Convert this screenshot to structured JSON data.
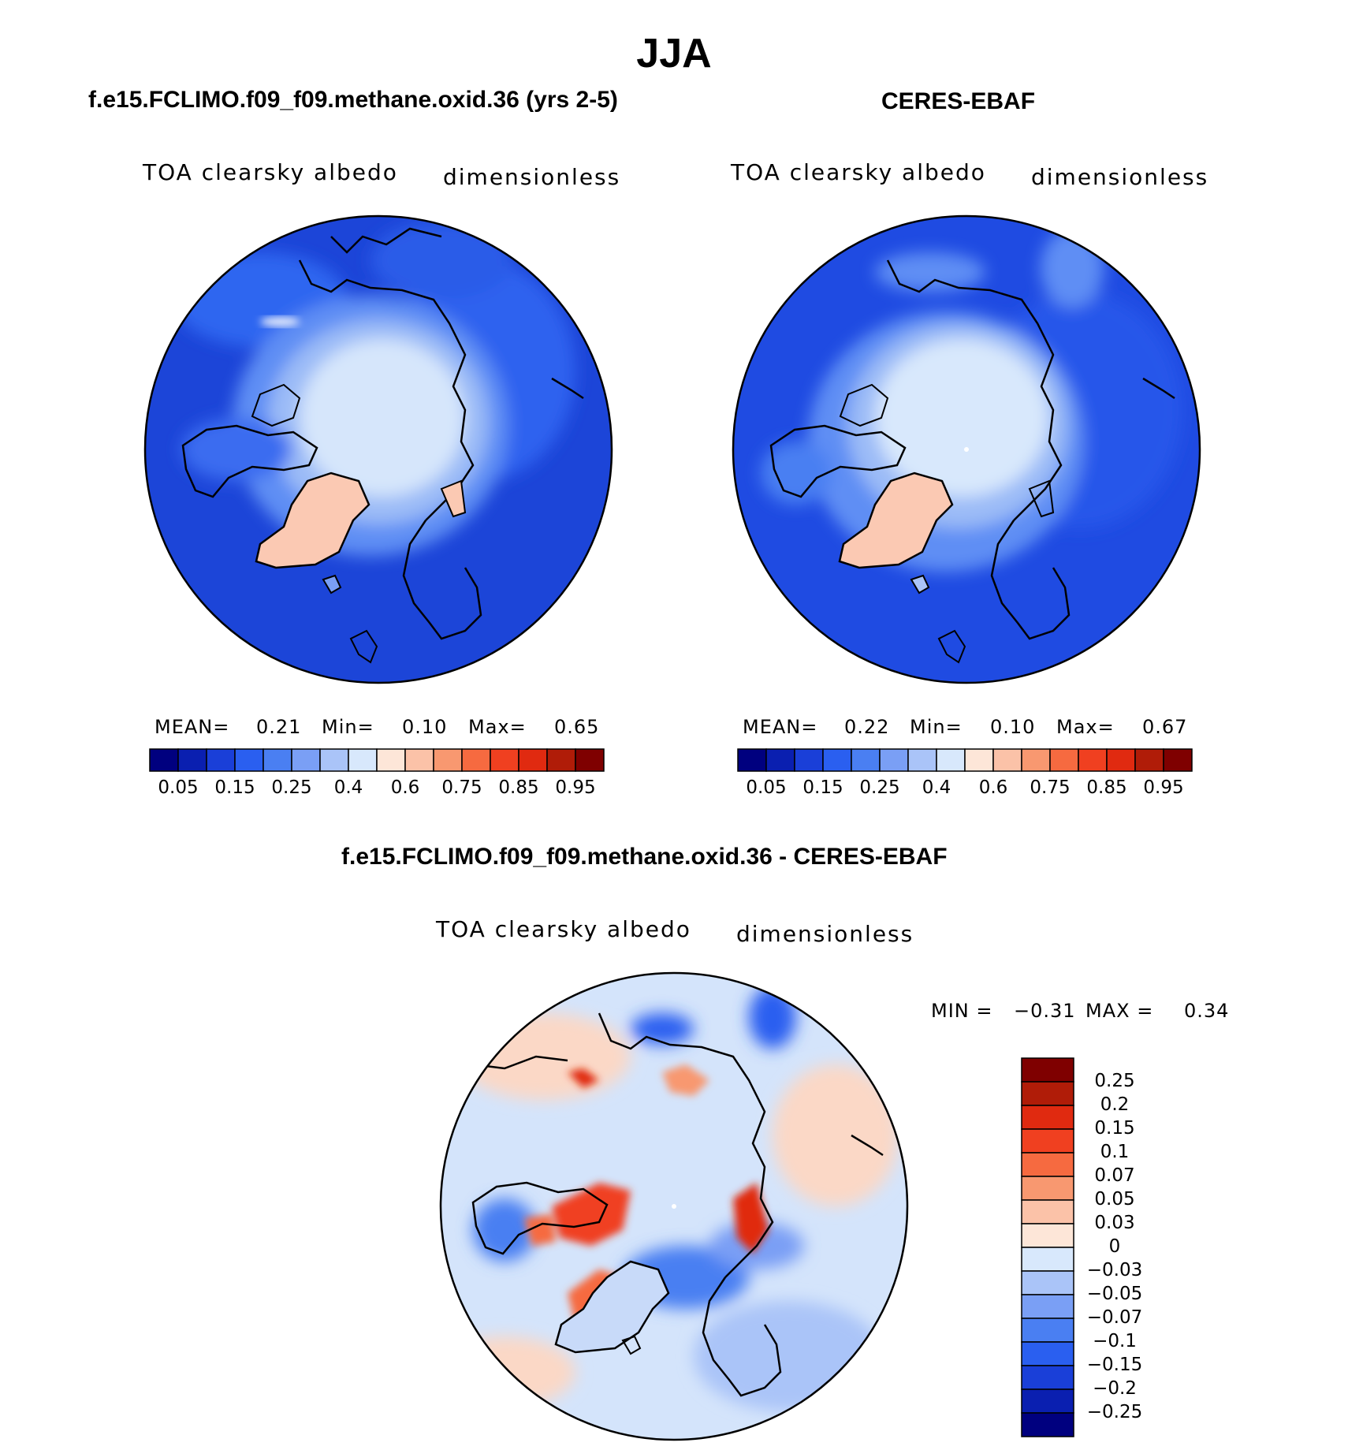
{
  "figure": {
    "season": "JJA",
    "top_left_title": "f.e15.FCLIMO.f09_f09.methane.oxid.36 (yrs 2-5)",
    "top_right_title": "CERES-EBAF",
    "difference_title": "f.e15.FCLIMO.f09_f09.methane.oxid.36 - CERES-EBAF"
  },
  "panels": {
    "model": {
      "variable": "TOA clearsky albedo",
      "units": "dimensionless",
      "mean_label": "MEAN=",
      "mean": "0.21",
      "min_label": "Min=",
      "min": "0.10",
      "max_label": "Max=",
      "max": "0.65"
    },
    "obs": {
      "variable": "TOA clearsky albedo",
      "units": "dimensionless",
      "mean_label": "MEAN=",
      "mean": "0.22",
      "min_label": "Min=",
      "min": "0.10",
      "max_label": "Max=",
      "max": "0.67"
    },
    "diff": {
      "variable": "TOA clearsky albedo",
      "units": "dimensionless",
      "min_label": "MIN =",
      "min": "−0.31",
      "max_label": "MAX =",
      "max": "0.34"
    }
  },
  "colorbars": {
    "albedo": {
      "tick_labels": [
        "0.05",
        "0.15",
        "0.25",
        "0.4",
        "0.6",
        "0.75",
        "0.85",
        "0.95"
      ],
      "colors": [
        "#00007f",
        "#0a1fb0",
        "#1a3fd8",
        "#2a5ff0",
        "#4a7ff2",
        "#7a9ff5",
        "#aac4f8",
        "#d8e8fc",
        "#fde6d8",
        "#fbc2a8",
        "#f89870",
        "#f66a40",
        "#f04020",
        "#e02a10",
        "#b01c08",
        "#7f0000"
      ]
    },
    "difference": {
      "tick_labels": [
        "0.25",
        "0.2",
        "0.15",
        "0.1",
        "0.07",
        "0.05",
        "0.03",
        "0",
        "−0.03",
        "−0.05",
        "−0.07",
        "−0.1",
        "−0.15",
        "−0.2",
        "−0.25"
      ],
      "colors": [
        "#7f0000",
        "#b01c08",
        "#e02a10",
        "#f04020",
        "#f66a40",
        "#f89870",
        "#fbc2a8",
        "#fde6d8",
        "#d8e8fc",
        "#aac4f8",
        "#7a9ff5",
        "#4a7ff2",
        "#2a5ff0",
        "#1a3fd8",
        "#0a1fb0",
        "#00007f"
      ]
    }
  },
  "colors": {
    "ocean_model": "#1f4fe0",
    "ocean_obs": "#2355e8",
    "ice_model": "#d6e6fb",
    "ice_obs": "#d8e8fc",
    "greenland": "#fbc9b3",
    "diff_background": "#d4e4fb"
  }
}
